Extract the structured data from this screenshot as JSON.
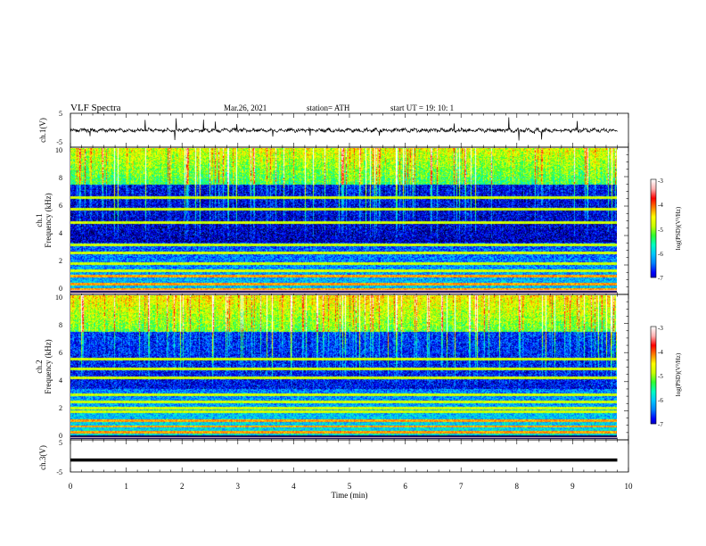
{
  "header": {
    "title": "VLF  Spectra",
    "date": "Mar.26, 2021",
    "station": "station= ATH",
    "start": "start  UT  =   19: 10: 1"
  },
  "chart_data": [
    {
      "type": "line",
      "id": "ch1",
      "ylabel": "ch.1(V)",
      "ylim": [
        -5,
        5
      ],
      "yticks": [
        "5",
        "-5"
      ],
      "xlim": [
        0,
        10
      ],
      "series": [
        {
          "style": "noisy trace around 0 V, amplitude about 0.6 V",
          "color": "#000000"
        }
      ]
    },
    {
      "type": "heatmap",
      "id": "ch1-spectrogram",
      "ylabel_line1": "ch.1",
      "ylabel_line2": "Frequency  (kHz)",
      "ylim": [
        0,
        10
      ],
      "yticks": [
        "10",
        "8",
        "6",
        "4",
        "2",
        "0"
      ],
      "xlim": [
        0,
        9.8
      ],
      "colorbar": {
        "label": "log(PSD)(V²/Hz)",
        "range": [
          -7,
          -3
        ],
        "ticks": [
          "-3",
          "-4",
          "-5",
          "-6",
          "-7"
        ]
      },
      "bands_khz": [
        0.3,
        0.7,
        1.2,
        1.6,
        2.1,
        2.8,
        3.4,
        4.9,
        5.8,
        6.6
      ]
    },
    {
      "type": "heatmap",
      "id": "ch2-spectrogram",
      "ylabel_line1": "ch.2",
      "ylabel_line2": "Frequency  (kHz)",
      "ylim": [
        0,
        10
      ],
      "yticks": [
        "10",
        "8",
        "6",
        "4",
        "2",
        "0"
      ],
      "xlim": [
        0,
        9.8
      ],
      "colorbar": {
        "label": "log(PSD)(V²/Hz)",
        "range": [
          -7,
          -3
        ],
        "ticks": [
          "-3",
          "-4",
          "-5",
          "-6",
          "-7"
        ]
      },
      "bands_khz": [
        0.5,
        0.9,
        1.3,
        1.9,
        2.2,
        2.6,
        3.1,
        4.3,
        4.9,
        5.6
      ]
    },
    {
      "type": "line",
      "id": "ch3",
      "ylabel": "ch.3(V)",
      "ylim": [
        -5,
        5
      ],
      "yticks": [
        "5",
        "-5"
      ],
      "xlim": [
        0,
        10
      ],
      "series": [
        {
          "style": "flat thick trace at about -1.3 V",
          "color": "#000000"
        }
      ]
    }
  ],
  "xaxis": {
    "label": "Time  (min)",
    "range": [
      0,
      10
    ],
    "ticks": [
      "0",
      "1",
      "2",
      "3",
      "4",
      "5",
      "6",
      "7",
      "8",
      "9",
      "10"
    ]
  },
  "colors": {
    "colormap": [
      "#000000",
      "#00008b",
      "#0000ff",
      "#0080ff",
      "#00c8ff",
      "#00ffc0",
      "#30ff30",
      "#c8ff00",
      "#ffff00",
      "#ff8000",
      "#ff0000",
      "#ffb0b0",
      "#ffffff"
    ]
  }
}
